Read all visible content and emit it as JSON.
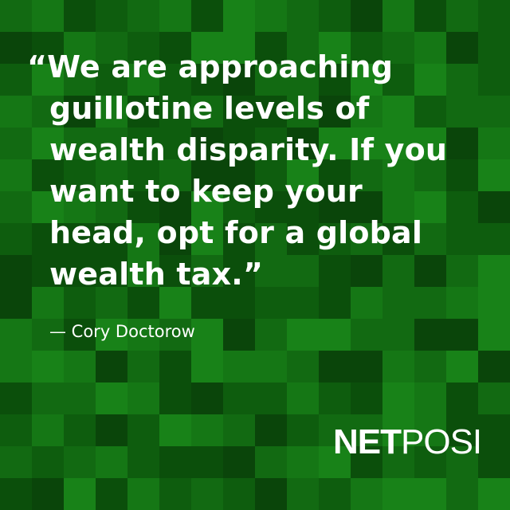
{
  "quote": {
    "lines": [
      "“We are approaching",
      "guillotine levels of",
      "wealth disparity. If you",
      "want to keep your",
      "head, opt for a global",
      "wealth tax.”"
    ]
  },
  "attribution": "— Cory Doctorow",
  "logo": {
    "bold_part": "NET",
    "light_part": "POSI"
  },
  "colors": {
    "background_palette": [
      "#0b4f0b",
      "#0e5d0e",
      "#126a12",
      "#157715",
      "#0a450a",
      "#188218"
    ],
    "text": "#ffffff"
  }
}
